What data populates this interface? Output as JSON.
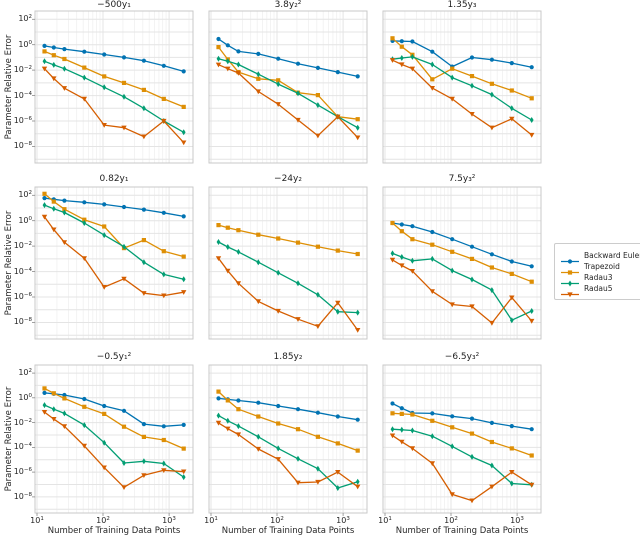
{
  "chart_data": {
    "type": "line",
    "layout": "3x3 grid of log-log line plots with shared axes",
    "x_label": "Number of Training Data Points",
    "y_label": "Parameter Relative Error",
    "x_scale": "log",
    "y_scale": "log",
    "x_tick_exponents": [
      1,
      2,
      3
    ],
    "y_tick_exponents": [
      2,
      0,
      -2,
      -4,
      -6,
      -8
    ],
    "x": [
      13,
      18,
      26,
      52,
      104,
      208,
      416,
      832,
      1664
    ],
    "series_order": [
      "backward_euler",
      "trapezoid",
      "radau3",
      "radau5"
    ],
    "grid": true,
    "subplots": [
      {
        "title": "−500y₁",
        "series": {
          "backward_euler": [
            0.8,
            0.6,
            0.45,
            0.28,
            0.17,
            0.1,
            0.055,
            0.022,
            0.008
          ],
          "trapezoid": [
            0.3,
            0.15,
            0.075,
            0.016,
            0.0032,
            0.001,
            0.00028,
            5.5e-05,
            1.3e-05
          ],
          "radau3": [
            0.05,
            0.026,
            0.013,
            0.0026,
            0.00045,
            8e-05,
            1e-05,
            1e-06,
            1.3e-07
          ],
          "radau5": [
            0.013,
            0.0022,
            0.00038,
            5.5e-05,
            4.8e-07,
            3e-07,
            6e-08,
            1e-06,
            2e-08
          ]
        }
      },
      {
        "title": "3.8y₂²",
        "series": {
          "backward_euler": [
            2.8,
            0.9,
            0.3,
            0.19,
            0.08,
            0.032,
            0.015,
            0.007,
            0.0032
          ],
          "trapezoid": [
            0.65,
            0.07,
            0.007,
            0.0021,
            0.0016,
            0.00017,
            0.00011,
            2.2e-06,
            1.4e-06
          ],
          "radau3": [
            0.08,
            0.05,
            0.028,
            0.0048,
            0.0008,
            0.00015,
            1.8e-05,
            2.2e-06,
            3e-07
          ],
          "radau5": [
            0.027,
            0.013,
            0.006,
            0.00021,
            2.1e-05,
            1.2e-06,
            7e-08,
            2.2e-06,
            5e-08
          ]
        }
      },
      {
        "title": "1.35y₃",
        "series": {
          "backward_euler": [
            2.0,
            1.9,
            1.8,
            0.28,
            0.019,
            0.098,
            0.066,
            0.036,
            0.017
          ],
          "trapezoid": [
            3.2,
            0.7,
            0.16,
            0.0019,
            0.013,
            0.0034,
            0.00084,
            0.00025,
            6.1e-05
          ],
          "radau3": [
            0.073,
            0.09,
            0.11,
            0.028,
            0.0026,
            0.00059,
            0.00012,
            1e-05,
            1.2e-06
          ],
          "radau5": [
            0.06,
            0.028,
            0.013,
            0.00039,
            5.5e-05,
            3.5e-06,
            3e-07,
            1.5e-06,
            8e-08
          ]
        }
      },
      {
        "title": "0.82y₁",
        "series": {
          "backward_euler": [
            60,
            48,
            38,
            28,
            19,
            12,
            7.5,
            4.2,
            2.2
          ],
          "trapezoid": [
            130,
            32,
            8,
            1.2,
            0.35,
            0.007,
            0.03,
            0.004,
            0.0015
          ],
          "radau3": [
            17,
            8.6,
            4.4,
            0.66,
            0.074,
            0.009,
            0.00055,
            6e-05,
            2.5e-05
          ],
          "radau5": [
            2,
            0.2,
            0.02,
            0.0011,
            6e-06,
            2.7e-05,
            2e-06,
            1.3e-06,
            2.4e-06
          ]
        }
      },
      {
        "title": "−24y₂",
        "series": {
          "backward_euler": null,
          "trapezoid": [
            0.45,
            0.28,
            0.18,
            0.08,
            0.04,
            0.019,
            0.009,
            0.0045,
            0.0024
          ],
          "radau3": [
            0.021,
            0.0086,
            0.0035,
            0.00055,
            8e-05,
            1.2e-05,
            1.5e-06,
            7e-08,
            6e-08
          ],
          "radau5": [
            0.0011,
            0.000115,
            1.2e-05,
            4.5e-07,
            8e-08,
            1.8e-08,
            5e-09,
            3.5e-07,
            2.5e-09
          ]
        }
      },
      {
        "title": "7.5y₃²",
        "series": {
          "backward_euler": [
            0.66,
            0.5,
            0.37,
            0.13,
            0.035,
            0.009,
            0.0023,
            0.00062,
            0.00026
          ],
          "trapezoid": [
            0.66,
            0.15,
            0.035,
            0.013,
            0.0036,
            0.001,
            0.00021,
            6.6e-05,
            1.6e-05
          ],
          "radau3": [
            0.0027,
            0.0014,
            0.00071,
            0.001,
            0.00012,
            2.4e-05,
            3.5e-06,
            1.5e-08,
            8e-08
          ],
          "radau5": [
            0.00083,
            0.0003,
            0.00011,
            2.8e-06,
            2.6e-07,
            1.8e-07,
            9e-09,
            9e-07,
            1.3e-08
          ]
        }
      },
      {
        "title": "−0.5y₁²",
        "series": {
          "backward_euler": [
            2.5,
            2.1,
            1.7,
            0.8,
            0.22,
            0.09,
            0.0075,
            0.005,
            0.0065
          ],
          "trapezoid": [
            5.8,
            2.3,
            0.9,
            0.19,
            0.05,
            0.0047,
            0.0007,
            0.00039,
            8e-05
          ],
          "radau3": [
            0.26,
            0.12,
            0.055,
            0.0063,
            0.00024,
            5.5e-06,
            7.5e-06,
            5e-06,
            4e-07
          ],
          "radau5": [
            0.07,
            0.019,
            0.005,
            0.00013,
            2.3e-06,
            6e-08,
            5.5e-07,
            1.4e-06,
            1.1e-06
          ]
        }
      },
      {
        "title": "1.85y₂",
        "series": {
          "backward_euler": [
            0.9,
            0.74,
            0.61,
            0.4,
            0.22,
            0.12,
            0.063,
            0.031,
            0.017
          ],
          "trapezoid": [
            3.2,
            0.62,
            0.12,
            0.031,
            0.0085,
            0.0029,
            0.00071,
            0.00021,
            5.5e-05
          ],
          "radau3": [
            0.037,
            0.014,
            0.0052,
            0.00071,
            8.3e-05,
            1.2e-05,
            1.9e-06,
            5.2e-08,
            1.7e-07
          ],
          "radau5": [
            0.0095,
            0.0032,
            0.0011,
            7.4e-05,
            1.1e-05,
            1.4e-07,
            1.6e-07,
            1e-06,
            6.6e-08
          ]
        }
      },
      {
        "title": "−6.5y₃²",
        "series": {
          "backward_euler": [
            0.35,
            0.145,
            0.06,
            0.055,
            0.032,
            0.021,
            0.0095,
            0.0052,
            0.0029
          ],
          "trapezoid": [
            0.056,
            0.05,
            0.045,
            0.014,
            0.0042,
            0.0013,
            0.00027,
            8.3e-05,
            2.2e-05
          ],
          "radau3": [
            0.0029,
            0.0026,
            0.0023,
            0.00079,
            0.00012,
            1.7e-05,
            3.4e-06,
            1.2e-07,
            9.5e-08
          ],
          "radau5": [
            0.00089,
            0.00028,
            8.3e-05,
            5.1e-06,
            1.6e-08,
            5e-09,
            6.6e-08,
            1e-06,
            9.5e-08
          ]
        }
      }
    ]
  },
  "legend": {
    "entries": [
      {
        "id": "backward_euler",
        "label": "Backward Euler",
        "color": "#0173B2",
        "marker": "circle"
      },
      {
        "id": "trapezoid",
        "label": "Trapezoid",
        "color": "#DE8F05",
        "marker": "square"
      },
      {
        "id": "radau3",
        "label": "Radau3",
        "color": "#029E73",
        "marker": "diamond-thin"
      },
      {
        "id": "radau5",
        "label": "Radau5",
        "color": "#D55E00",
        "marker": "triangle-down"
      }
    ]
  },
  "style": {
    "background": "#FFFFFF",
    "grid_major_color": "#E4E4E4",
    "grid_minor_color": "#F0F0F0",
    "spine_color": "#C9C9C9",
    "text_color": "#262626"
  }
}
